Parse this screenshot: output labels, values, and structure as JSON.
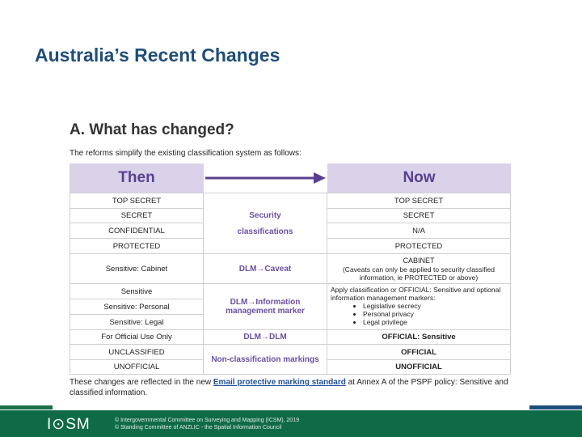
{
  "slide": {
    "title": "Australia’s Recent Changes"
  },
  "document": {
    "heading": "A. What has changed?",
    "intro": "The reforms simplify the existing classification system as follows:",
    "then_header": "Then",
    "now_header": "Now",
    "then": [
      "TOP SECRET",
      "SECRET",
      "CONFIDENTIAL",
      "PROTECTED",
      "Sensitive: Cabinet",
      "Sensitive",
      "Sensitive: Personal",
      "Sensitive: Legal",
      "For Official Use Only",
      "UNCLASSIFIED",
      "UNOFFICIAL"
    ],
    "middle": {
      "security_1": "Security",
      "security_2": "classifications",
      "caveat": "DLM→Caveat",
      "info_1": "DLM→Information",
      "info_2": "management marker",
      "dlm": "DLM→DLM",
      "nonclass": "Non-classification markings"
    },
    "now": {
      "top_secret": "TOP SECRET",
      "secret": "SECRET",
      "na": "N/A",
      "protected": "PROTECTED",
      "cabinet": "CABINET",
      "cabinet_note": "(Caveats can only be applied to security classified information, ie PROTECTED or above)",
      "apply": "Apply classification or OFFICIAL: Sensitive and optional information management markers:",
      "markers": [
        "Legislative secrecy",
        "Personal privacy",
        "Legal privilege"
      ],
      "official_sensitive": "OFFICIAL: Sensitive",
      "official": "OFFICIAL",
      "unofficial": "UNOFFICIAL"
    },
    "footer_pre": "These changes are reflected in the new ",
    "footer_link": "Email protective marking standard",
    "footer_post": " at Annex A of the PSPF policy: Sensitive and classified information."
  },
  "footer": {
    "logo": "I⊙SM",
    "copyright_1": "© Intergovernmental Committee on Surveying and Mapping (ICSM), 2019",
    "copyright_2": "© Standing Committee of ANZLIC - the Spatial Information Council"
  },
  "colors": {
    "title": "#1f4e79",
    "header_bg": "#d9d2e9",
    "header_text": "#5b3f8f",
    "footer": "#0f6b46"
  }
}
